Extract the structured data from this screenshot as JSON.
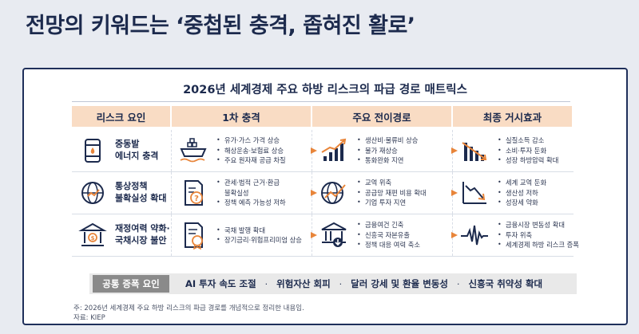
{
  "headline": "전망의 키워드는 ‘중첩된 충격, 좁혀진 활로’",
  "matrix_title": "2026년 세계경제 주요 하방 리스크의 파급 경로 매트릭스",
  "columns": [
    "리스크 요인",
    "1차 충격",
    "주요 전이경로",
    "최종 거시효과"
  ],
  "rows": [
    {
      "risk": "중동발\n에너지 충격",
      "risk_icon": "oil-barrel-icon",
      "shock_icon": "cargo-ship-icon",
      "shock": [
        "유가·가스 가격 상승",
        "해상운송·보험료 상승",
        "주요 원자재 공급 차질"
      ],
      "path_icon": "rising-chart-icon",
      "path": [
        "생산비·물류비 상승",
        "물가 재상승",
        "통화완화 지연"
      ],
      "effect_icon": "falling-chart-icon",
      "effect": [
        "실질소득 감소",
        "소비·투자 둔화",
        "성장 하방압력 확대"
      ]
    },
    {
      "risk": "통상정책\n불확실성 확대",
      "risk_icon": "globe-policy-icon",
      "shock_icon": "question-document-icon",
      "shock": [
        "관세·법적 근거·환급",
        "불확실성",
        "정책 예측 가능성 저하"
      ],
      "path_icon": "globe-trend-icon",
      "path": [
        "교역 위축",
        "공급망 재편 비용 확대",
        "기업 투자 지연"
      ],
      "effect_icon": "declining-line-icon",
      "effect": [
        "세계 교역 둔화",
        "생산성 저하",
        "성장세 약화"
      ]
    },
    {
      "risk": "재정여력 약화·\n국채시장 불안",
      "risk_icon": "treasury-bank-icon",
      "shock_icon": "bond-certificate-icon",
      "shock": [
        "국채 발행 확대",
        "장기금리·위험프리미엄 상승"
      ],
      "path_icon": "bank-down-icon",
      "path": [
        "금융여건 긴축",
        "신흥국 자본유출",
        "정책 대응 여력 축소"
      ],
      "effect_icon": "volatility-pulse-icon",
      "effect": [
        "금융시장 변동성 확대",
        "투자 위축",
        "세계경제 하방 리스크 증폭"
      ]
    }
  ],
  "common": {
    "label": "공통 증폭 요인",
    "items": [
      "AI 투자 속도 조절",
      "위험자산 회피",
      "달러 강세 및 환율 변동성",
      "신흥국 취약성 확대"
    ],
    "separator": "·"
  },
  "notes": {
    "note": "주: 2026년 세계경제 주요 하방 리스크의 파급 경로를 개념적으로 정리한 내용임.",
    "source": "자료: KIEP"
  },
  "colors": {
    "header_bg": "#f9dcc4",
    "navy": "#1c2a4d",
    "accent_orange": "#e8853a",
    "border": "#1f2f5a"
  }
}
